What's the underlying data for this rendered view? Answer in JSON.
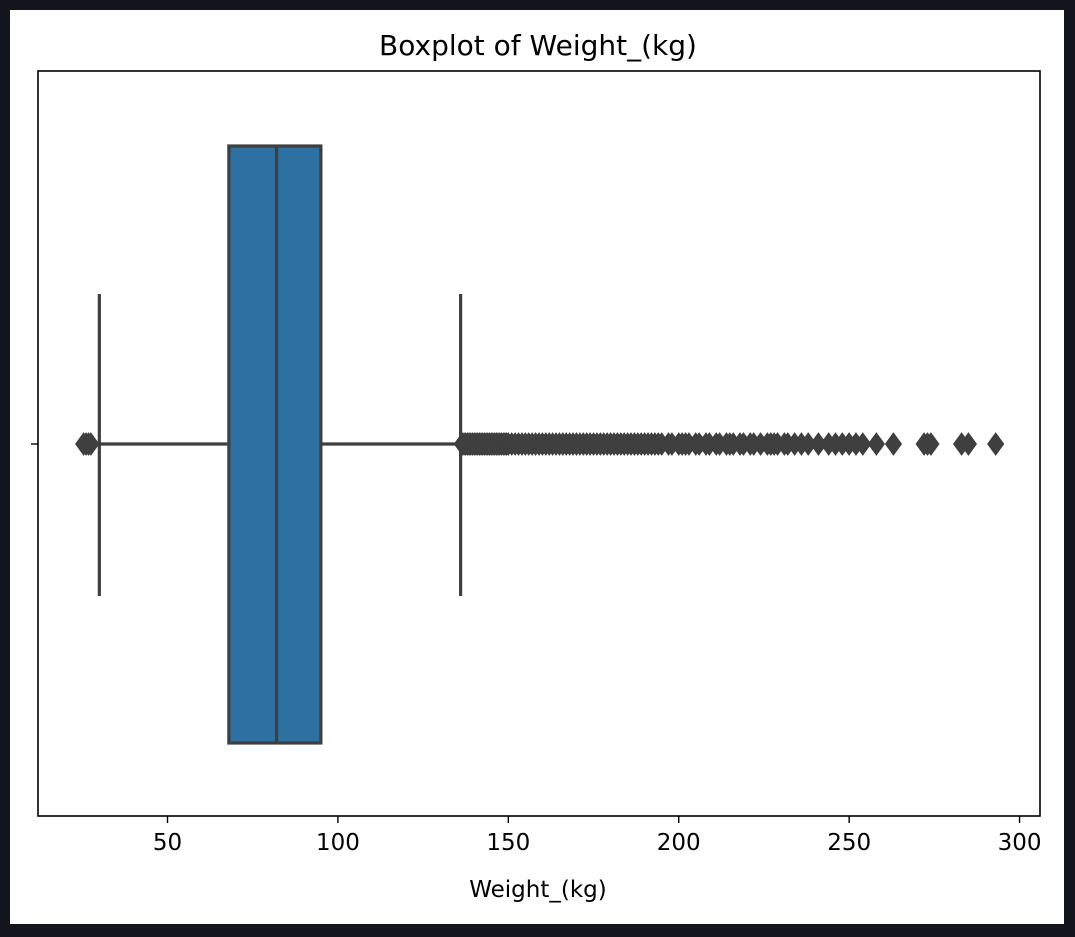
{
  "chart_data": {
    "type": "box",
    "title": "Boxplot of Weight_(kg)",
    "xlabel": "Weight_(kg)",
    "ylabel": "",
    "xlim": [
      12,
      306
    ],
    "xticks": [
      50,
      100,
      150,
      200,
      250,
      300
    ],
    "grid": false,
    "box": {
      "whisker_low": 30,
      "q1": 68,
      "median": 82,
      "q3": 95,
      "whisker_high": 136,
      "color": "#2e70a1",
      "line_color": "#3f3f3f"
    },
    "outliers": [
      25.4,
      26.1,
      26.8,
      27.5,
      136.5,
      137,
      137.5,
      138,
      138.5,
      139,
      139.5,
      140,
      140.5,
      141,
      141.5,
      142,
      142.5,
      143,
      143.5,
      144,
      144.5,
      145,
      145.5,
      146,
      146.5,
      147,
      147.5,
      148,
      148.5,
      149,
      149.5,
      150,
      151,
      152,
      153,
      154,
      155,
      156,
      157,
      158,
      159,
      160,
      161,
      162,
      163,
      164,
      165,
      166,
      167,
      168,
      169,
      170,
      171,
      172,
      173,
      174,
      175,
      176,
      177,
      178,
      179,
      180,
      181,
      182,
      183,
      184,
      185,
      186,
      187,
      188,
      189,
      190,
      191,
      192,
      193,
      194,
      195,
      197,
      198,
      200,
      201,
      202,
      203,
      205,
      206,
      208,
      209,
      211,
      212,
      214,
      215,
      216,
      218,
      219,
      221,
      222,
      224,
      226,
      227,
      228,
      229,
      231,
      232,
      234,
      236,
      238,
      241,
      244,
      246,
      248,
      250,
      252,
      254,
      258,
      263,
      272,
      273,
      274,
      283,
      285,
      293
    ]
  }
}
